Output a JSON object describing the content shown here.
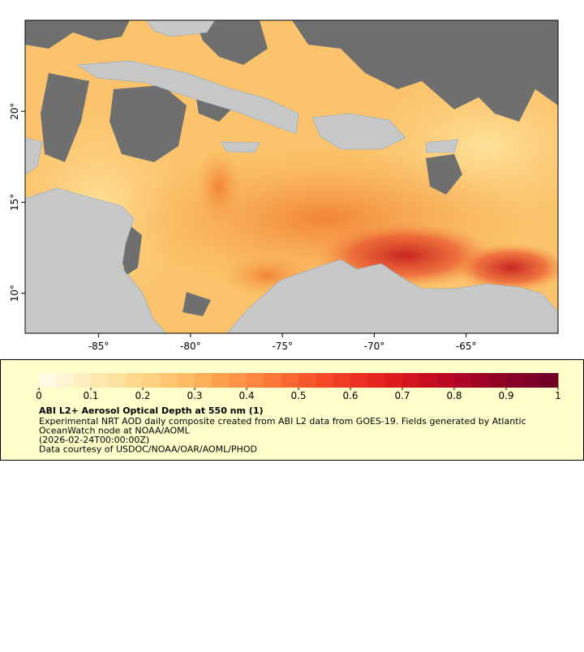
{
  "map": {
    "xlim": [
      -89,
      -60
    ],
    "ylim": [
      7.8,
      25
    ],
    "xticks": [
      {
        "value": -85,
        "label": "-85°"
      },
      {
        "value": -80,
        "label": "-80°"
      },
      {
        "value": -75,
        "label": "-75°"
      },
      {
        "value": -70,
        "label": "-70°"
      },
      {
        "value": -65,
        "label": "-65°"
      }
    ],
    "yticks": [
      {
        "value": 10,
        "label": "10°"
      },
      {
        "value": 15,
        "label": "15°"
      },
      {
        "value": 20,
        "label": "20°"
      }
    ]
  },
  "colorbar": {
    "range": [
      0,
      1
    ],
    "ticks": [
      0,
      0.1,
      0.2,
      0.3,
      0.4,
      0.5,
      0.6,
      0.7,
      0.8,
      0.9,
      1
    ],
    "colors": [
      "#fffbe3",
      "#fff5d2",
      "#ffefc0",
      "#fee8ae",
      "#fee19e",
      "#fed98e",
      "#fed07f",
      "#fec670",
      "#febb63",
      "#fdae58",
      "#fda04e",
      "#fd9346",
      "#fc853f",
      "#fc7638",
      "#fb6732",
      "#f9582d",
      "#f64a29",
      "#f23d26",
      "#ec3023",
      "#e52520",
      "#dd1c1e",
      "#d3141f",
      "#c80d22",
      "#bc0824",
      "#ae0426",
      "#a00226",
      "#920126",
      "#860027",
      "#7c0027",
      "#720026"
    ]
  },
  "caption": {
    "title": "ABI L2+ Aerosol Optical Depth at 550 nm (1)",
    "lines": [
      "Experimental NRT AOD daily composite created from ABI L2 data from GOES-19. Fields generated by Atlantic",
      "OceanWatch node at NOAA/AOML",
      "(2026-02-24T00:00:00Z)",
      "Data courtesy of USDOC/NOAA/OAR/AOML/PHOD"
    ]
  }
}
